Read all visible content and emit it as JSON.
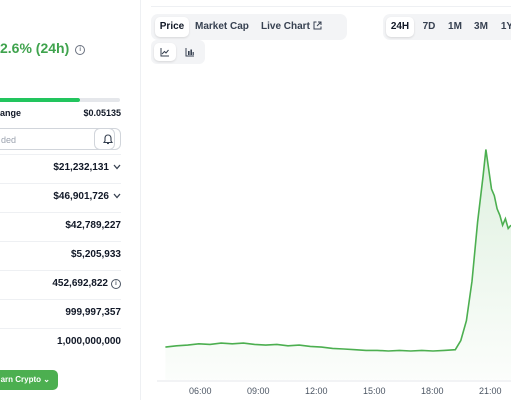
{
  "header": {
    "change_pct": "2.6% (24h)"
  },
  "range_24h": {
    "label": "ange",
    "high": "$0.05135",
    "progress_fraction": 0.67
  },
  "watch": {
    "placeholder": "ded"
  },
  "stats": [
    {
      "value": "$21,232,131",
      "chevron": true,
      "info": false
    },
    {
      "value": "$46,901,726",
      "chevron": true,
      "info": false
    },
    {
      "value": "$42,789,227",
      "chevron": false,
      "info": false
    },
    {
      "value": "$5,205,933",
      "chevron": false,
      "info": false
    },
    {
      "value": "452,692,822",
      "chevron": false,
      "info": true
    },
    {
      "value": "999,997,357",
      "chevron": false,
      "info": false
    },
    {
      "value": "1,000,000,000",
      "chevron": false,
      "info": false
    }
  ],
  "earn_button": {
    "label": "arn Crypto"
  },
  "chart_tabs": [
    {
      "label": "Price",
      "active": true
    },
    {
      "label": "Market Cap",
      "active": false
    },
    {
      "label": "Live Chart",
      "active": false
    }
  ],
  "time_ranges": [
    {
      "label": "24H",
      "active": true
    },
    {
      "label": "7D",
      "active": false
    },
    {
      "label": "1M",
      "active": false
    },
    {
      "label": "3M",
      "active": false
    },
    {
      "label": "1Y",
      "active": false
    }
  ],
  "chart_types": [
    {
      "icon": "line-chart-icon",
      "active": true
    },
    {
      "icon": "candlestick-icon",
      "active": false
    }
  ],
  "colors": {
    "accent_green": "#3fa34d",
    "line_green": "#4caf50",
    "button_green": "#4caf50"
  },
  "chart_data": {
    "type": "area",
    "x_ticks": [
      "06:00",
      "09:00",
      "12:00",
      "15:00",
      "18:00",
      "21:00"
    ],
    "series": [
      {
        "points": [
          [
            0.0,
            0.0
          ],
          [
            0.4,
            0.02
          ],
          [
            0.8,
            0.03
          ],
          [
            1.2,
            0.05
          ],
          [
            1.6,
            0.04
          ],
          [
            2.0,
            0.06
          ],
          [
            2.4,
            0.05
          ],
          [
            2.8,
            0.06
          ],
          [
            3.2,
            0.04
          ],
          [
            3.6,
            0.03
          ],
          [
            4.0,
            0.04
          ],
          [
            4.4,
            0.02
          ],
          [
            4.8,
            0.03
          ],
          [
            5.2,
            0.01
          ],
          [
            5.6,
            0.0
          ],
          [
            6.0,
            -0.02
          ],
          [
            6.4,
            -0.03
          ],
          [
            6.8,
            -0.04
          ],
          [
            7.2,
            -0.05
          ],
          [
            7.6,
            -0.05
          ],
          [
            8.0,
            -0.06
          ],
          [
            8.4,
            -0.05
          ],
          [
            8.8,
            -0.06
          ],
          [
            9.2,
            -0.05
          ],
          [
            9.6,
            -0.06
          ],
          [
            10.0,
            -0.05
          ],
          [
            10.4,
            -0.04
          ],
          [
            10.6,
            0.1
          ],
          [
            10.8,
            0.4
          ],
          [
            11.0,
            1.0
          ],
          [
            11.2,
            1.9
          ],
          [
            11.4,
            2.6
          ],
          [
            11.5,
            3.0
          ],
          [
            11.6,
            2.7
          ],
          [
            11.7,
            2.4
          ],
          [
            11.8,
            2.3
          ],
          [
            11.9,
            2.1
          ],
          [
            12.0,
            2.0
          ],
          [
            12.1,
            1.85
          ],
          [
            12.2,
            1.95
          ],
          [
            12.3,
            1.8
          ],
          [
            12.4,
            1.85
          ]
        ]
      }
    ],
    "ylim": [
      -0.5,
      3.6
    ],
    "xlim": [
      -1.0,
      13.0
    ],
    "grid": false,
    "legend": "none"
  }
}
